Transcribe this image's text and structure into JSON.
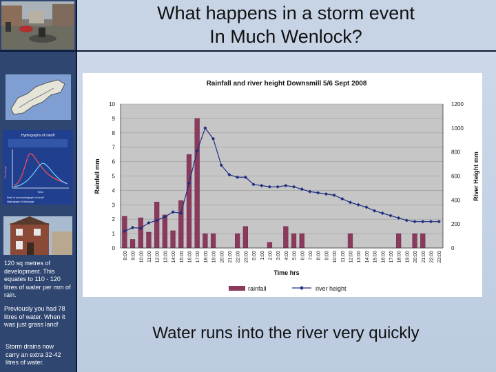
{
  "slide": {
    "title": "What happens in a storm event\nIn Much Wenlock?",
    "caption": "Water runs into the river very quickly"
  },
  "sidebar": {
    "text1": "120 sq metres of development. This equates to 110 - 120 litres of water per mm of rain.",
    "text2": "Previously you had 78 litres of water. When it was just grass land!",
    "text3": "Storm drains now carry an extra 32-42 litres of water.",
    "hydrograph": {
      "title": "Hydrographs of runoff",
      "label_a": "Peak of river hydrograph of runoff",
      "label_b": "Hydrograph of discharge",
      "axis_left": "Discharge",
      "axis_bottom": "Time"
    }
  },
  "chart_data": {
    "type": "bar",
    "title": "Rainfall and river height Downsmill 5/6 Sept 2008",
    "xlabel": "Time hrs",
    "ylabel_left": "Rainfall mm",
    "ylabel_right": "River Height mm",
    "ylim_left": [
      0,
      10
    ],
    "ylim_right": [
      0,
      1200
    ],
    "yticks_left": [
      "0",
      "1",
      "2",
      "3",
      "4",
      "5",
      "6",
      "7",
      "8",
      "9",
      "10"
    ],
    "yticks_right": [
      "0",
      "200",
      "400",
      "600",
      "800",
      "1000",
      "1200"
    ],
    "grid": "horizontal",
    "legend_position": "bottom",
    "categories": [
      "8:00",
      "9:00",
      "10:00",
      "11:00",
      "12:00",
      "13:00",
      "14:00",
      "15:00",
      "16:00",
      "17:00",
      "18:00",
      "19:00",
      "20:00",
      "21:00",
      "22:00",
      "23:00",
      "0:00",
      "1:00",
      "2:00",
      "3:00",
      "4:00",
      "5:00",
      "6:00",
      "7:00",
      "8:00",
      "9:00",
      "10:00",
      "11:00",
      "12:00",
      "13:00",
      "14:00",
      "15:00",
      "16:00",
      "17:00",
      "18:00",
      "19:00",
      "20:00",
      "21:00",
      "22:00",
      "23:00"
    ],
    "series": [
      {
        "name": "rainfall",
        "axis": "left",
        "type": "bar",
        "color": "#8b3a5e",
        "values": [
          2.2,
          0.6,
          2.1,
          1.1,
          3.2,
          2.3,
          1.2,
          3.3,
          6.5,
          9.0,
          1.0,
          1.0,
          0,
          0,
          1.0,
          1.5,
          0,
          0,
          0.4,
          0,
          1.5,
          1.0,
          1.0,
          0,
          0,
          0,
          0,
          0,
          1.0,
          0,
          0,
          0,
          0,
          0,
          1.0,
          0,
          1.0,
          1.0,
          0,
          0
        ]
      },
      {
        "name": "river height",
        "axis": "right",
        "type": "line",
        "color": "#1f2d80",
        "values": [
          140,
          170,
          165,
          210,
          230,
          260,
          300,
          290,
          540,
          810,
          1000,
          910,
          690,
          610,
          590,
          590,
          530,
          520,
          510,
          510,
          520,
          510,
          490,
          470,
          460,
          450,
          440,
          410,
          380,
          360,
          340,
          310,
          290,
          270,
          250,
          230,
          220,
          220,
          220,
          220
        ]
      }
    ]
  },
  "colors": {
    "sidebar": "#2f4670",
    "rain_bar": "#8b3a5e",
    "river_line": "#1f2d80"
  }
}
